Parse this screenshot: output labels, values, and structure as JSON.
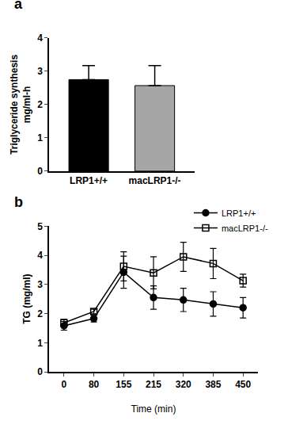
{
  "chart_data": [
    {
      "type": "bar",
      "panel_label": "a",
      "y_label": [
        "Triglyceride synthesis",
        "mg/ml-h"
      ],
      "categories": [
        "LRP1+/+",
        "macLRP1-/-"
      ],
      "values": [
        2.75,
        2.57
      ],
      "errors": [
        0.42,
        0.6
      ],
      "colors": [
        "#000000",
        "#a6a6a6"
      ],
      "ylim": [
        0,
        4
      ],
      "yticks": [
        0,
        1,
        2,
        3,
        4
      ],
      "grid": false
    },
    {
      "type": "line",
      "panel_label": "b",
      "x_label": "Time (min)",
      "y_label": "TG (mg/ml)",
      "categories": [
        "0",
        "80",
        "155",
        "215",
        "320",
        "385",
        "450"
      ],
      "series": [
        {
          "name": "LRP1+/+",
          "color": "#000000",
          "marker": "circle",
          "values": [
            1.58,
            1.83,
            3.42,
            2.55,
            2.47,
            2.33,
            2.2
          ],
          "errors": [
            0.15,
            0.12,
            0.55,
            0.4,
            0.4,
            0.42,
            0.35
          ]
        },
        {
          "name": "macLRP1-/-",
          "color": "#000000",
          "marker": "square-open",
          "values": [
            1.68,
            2.07,
            3.62,
            3.4,
            3.95,
            3.72,
            3.13
          ],
          "errors": [
            0.12,
            0.08,
            0.5,
            0.55,
            0.5,
            0.52,
            0.22
          ]
        }
      ],
      "ylim": [
        0,
        5
      ],
      "yticks": [
        0,
        1,
        2,
        3,
        4,
        5
      ],
      "legend": "top-right",
      "grid": false
    }
  ]
}
